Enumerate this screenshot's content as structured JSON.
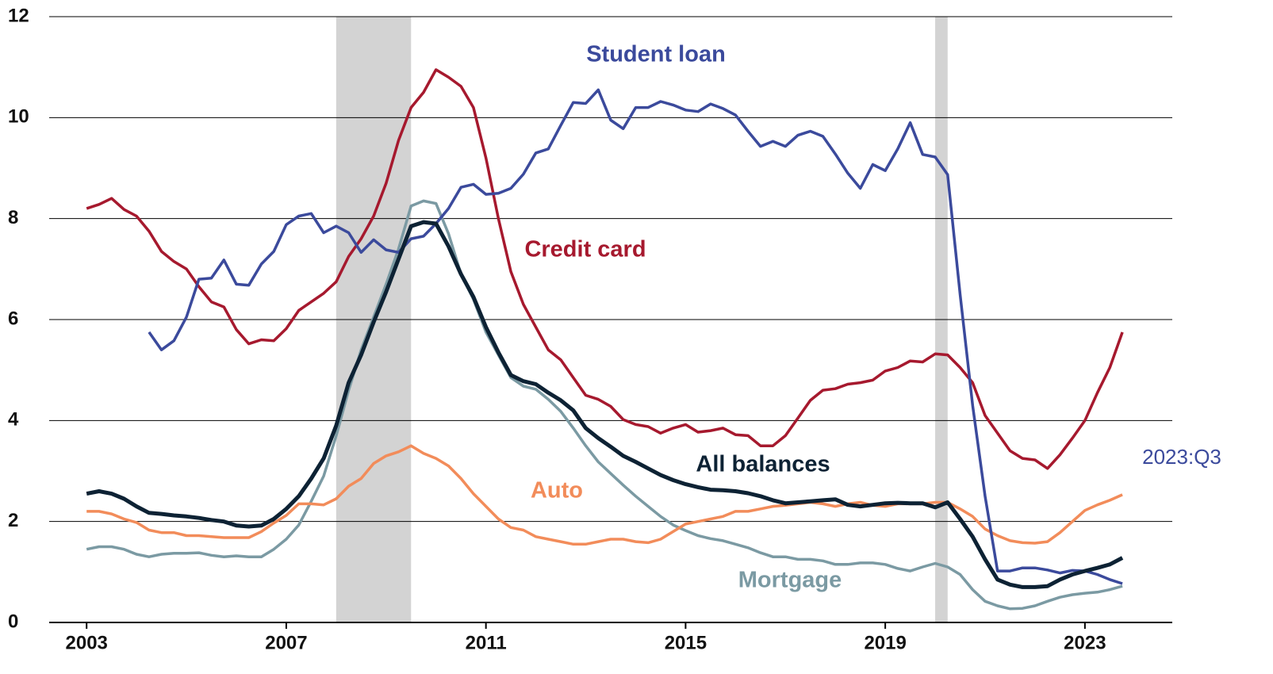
{
  "chart_data": {
    "type": "line",
    "xlim": [
      2002.25,
      2024.75
    ],
    "ylim": [
      0,
      12
    ],
    "xticks": [
      2003,
      2007,
      2011,
      2015,
      2019,
      2023
    ],
    "yticks": [
      0,
      2,
      4,
      6,
      8,
      10,
      12
    ],
    "grid": true,
    "recessions": [
      [
        2008,
        2009.5
      ],
      [
        2020,
        2020.25
      ]
    ],
    "recession_color": "#d3d3d3",
    "annotation": "2023:Q3",
    "x": [
      2003,
      2003.25,
      2003.5,
      2003.75,
      2004,
      2004.25,
      2004.5,
      2004.75,
      2005,
      2005.25,
      2005.5,
      2005.75,
      2006,
      2006.25,
      2006.5,
      2006.75,
      2007,
      2007.25,
      2007.5,
      2007.75,
      2008,
      2008.25,
      2008.5,
      2008.75,
      2009,
      2009.25,
      2009.5,
      2009.75,
      2010,
      2010.25,
      2010.5,
      2010.75,
      2011,
      2011.25,
      2011.5,
      2011.75,
      2012,
      2012.25,
      2012.5,
      2012.75,
      2013,
      2013.25,
      2013.5,
      2013.75,
      2014,
      2014.25,
      2014.5,
      2014.75,
      2015,
      2015.25,
      2015.5,
      2015.75,
      2016,
      2016.25,
      2016.5,
      2016.75,
      2017,
      2017.25,
      2017.5,
      2017.75,
      2018,
      2018.25,
      2018.5,
      2018.75,
      2019,
      2019.25,
      2019.5,
      2019.75,
      2020,
      2020.25,
      2020.5,
      2020.75,
      2021,
      2021.25,
      2021.5,
      2021.75,
      2022,
      2022.25,
      2022.5,
      2022.75,
      2023,
      2023.25,
      2023.5,
      2023.75
    ],
    "series": [
      {
        "name": "Mortgage",
        "color": "#7b9aa3",
        "width": 3.5,
        "values": [
          1.45,
          1.5,
          1.5,
          1.45,
          1.35,
          1.3,
          1.35,
          1.37,
          1.37,
          1.38,
          1.33,
          1.3,
          1.32,
          1.3,
          1.3,
          1.45,
          1.65,
          1.93,
          2.4,
          2.9,
          3.7,
          4.6,
          5.4,
          6.05,
          6.7,
          7.4,
          8.25,
          8.35,
          8.3,
          7.7,
          6.9,
          6.4,
          5.75,
          5.3,
          4.85,
          4.68,
          4.62,
          4.42,
          4.18,
          3.85,
          3.5,
          3.18,
          2.95,
          2.72,
          2.5,
          2.3,
          2.1,
          1.93,
          1.82,
          1.72,
          1.66,
          1.62,
          1.55,
          1.48,
          1.38,
          1.3,
          1.3,
          1.25,
          1.25,
          1.22,
          1.15,
          1.15,
          1.18,
          1.18,
          1.15,
          1.07,
          1.02,
          1.1,
          1.17,
          1.1,
          0.95,
          0.65,
          0.42,
          0.33,
          0.27,
          0.28,
          0.33,
          0.42,
          0.5,
          0.55,
          0.58,
          0.6,
          0.65,
          0.72
        ]
      },
      {
        "name": "Auto",
        "color": "#f28c5a",
        "width": 3.5,
        "values": [
          2.2,
          2.2,
          2.15,
          2.05,
          1.98,
          1.83,
          1.78,
          1.78,
          1.72,
          1.72,
          1.7,
          1.68,
          1.68,
          1.68,
          1.8,
          1.97,
          2.12,
          2.35,
          2.35,
          2.33,
          2.45,
          2.7,
          2.85,
          3.15,
          3.3,
          3.38,
          3.5,
          3.35,
          3.25,
          3.1,
          2.85,
          2.55,
          2.3,
          2.05,
          1.88,
          1.83,
          1.7,
          1.65,
          1.6,
          1.55,
          1.55,
          1.6,
          1.65,
          1.65,
          1.6,
          1.58,
          1.65,
          1.8,
          1.95,
          2.0,
          2.05,
          2.1,
          2.2,
          2.2,
          2.25,
          2.3,
          2.32,
          2.35,
          2.38,
          2.35,
          2.3,
          2.35,
          2.38,
          2.32,
          2.3,
          2.35,
          2.35,
          2.35,
          2.38,
          2.38,
          2.25,
          2.1,
          1.85,
          1.72,
          1.62,
          1.58,
          1.57,
          1.6,
          1.78,
          2.0,
          2.22,
          2.33,
          2.42,
          2.53
        ]
      },
      {
        "name": "Credit card",
        "color": "#a6192e",
        "width": 3.5,
        "values": [
          8.2,
          8.28,
          8.4,
          8.18,
          8.05,
          7.75,
          7.35,
          7.15,
          7.0,
          6.65,
          6.35,
          6.25,
          5.8,
          5.52,
          5.6,
          5.58,
          5.82,
          6.18,
          6.35,
          6.52,
          6.75,
          7.25,
          7.6,
          8.05,
          8.7,
          9.55,
          10.2,
          10.5,
          10.95,
          10.8,
          10.62,
          10.2,
          9.2,
          8.0,
          6.95,
          6.3,
          5.85,
          5.4,
          5.2,
          4.85,
          4.5,
          4.42,
          4.28,
          4.02,
          3.92,
          3.88,
          3.75,
          3.85,
          3.92,
          3.77,
          3.8,
          3.85,
          3.72,
          3.7,
          3.5,
          3.5,
          3.7,
          4.05,
          4.4,
          4.6,
          4.63,
          4.72,
          4.75,
          4.8,
          4.98,
          5.05,
          5.18,
          5.16,
          5.32,
          5.3,
          5.05,
          4.75,
          4.1,
          3.75,
          3.4,
          3.25,
          3.22,
          3.05,
          3.32,
          3.65,
          4.0,
          4.55,
          5.05,
          5.75
        ]
      },
      {
        "name": "Student loan",
        "color": "#3b4a9c",
        "width": 3.5,
        "values": [
          null,
          null,
          null,
          null,
          null,
          5.75,
          5.4,
          5.58,
          6.05,
          6.8,
          6.82,
          7.18,
          6.7,
          6.68,
          7.1,
          7.35,
          7.88,
          8.05,
          8.1,
          7.72,
          7.85,
          7.72,
          7.33,
          7.58,
          7.38,
          7.33,
          7.6,
          7.65,
          7.9,
          8.2,
          8.62,
          8.68,
          8.48,
          8.5,
          8.6,
          8.88,
          9.3,
          9.38,
          9.85,
          10.3,
          10.28,
          10.55,
          9.95,
          9.78,
          10.2,
          10.2,
          10.32,
          10.25,
          10.15,
          10.12,
          10.27,
          10.18,
          10.05,
          9.73,
          9.43,
          9.53,
          9.43,
          9.65,
          9.73,
          9.63,
          9.28,
          8.9,
          8.6,
          9.07,
          8.95,
          9.38,
          9.9,
          9.27,
          9.22,
          8.87,
          6.5,
          4.3,
          2.5,
          1.02,
          1.02,
          1.08,
          1.08,
          1.04,
          0.98,
          1.03,
          1.02,
          0.95,
          0.85,
          0.77
        ]
      },
      {
        "name": "All balances",
        "color": "#0d2234",
        "width": 5,
        "values": [
          2.55,
          2.6,
          2.55,
          2.45,
          2.3,
          2.17,
          2.15,
          2.12,
          2.1,
          2.07,
          2.03,
          2.0,
          1.92,
          1.9,
          1.92,
          2.05,
          2.25,
          2.5,
          2.85,
          3.25,
          3.9,
          4.75,
          5.3,
          5.95,
          6.55,
          7.2,
          7.85,
          7.93,
          7.9,
          7.45,
          6.9,
          6.45,
          5.85,
          5.35,
          4.9,
          4.78,
          4.72,
          4.55,
          4.4,
          4.2,
          3.85,
          3.65,
          3.48,
          3.3,
          3.18,
          3.05,
          2.92,
          2.82,
          2.74,
          2.68,
          2.63,
          2.62,
          2.6,
          2.56,
          2.5,
          2.42,
          2.36,
          2.38,
          2.4,
          2.42,
          2.44,
          2.33,
          2.3,
          2.33,
          2.36,
          2.37,
          2.36,
          2.36,
          2.28,
          2.38,
          2.05,
          1.7,
          1.25,
          0.85,
          0.75,
          0.7,
          0.7,
          0.72,
          0.85,
          0.95,
          1.02,
          1.08,
          1.15,
          1.28
        ]
      }
    ]
  }
}
